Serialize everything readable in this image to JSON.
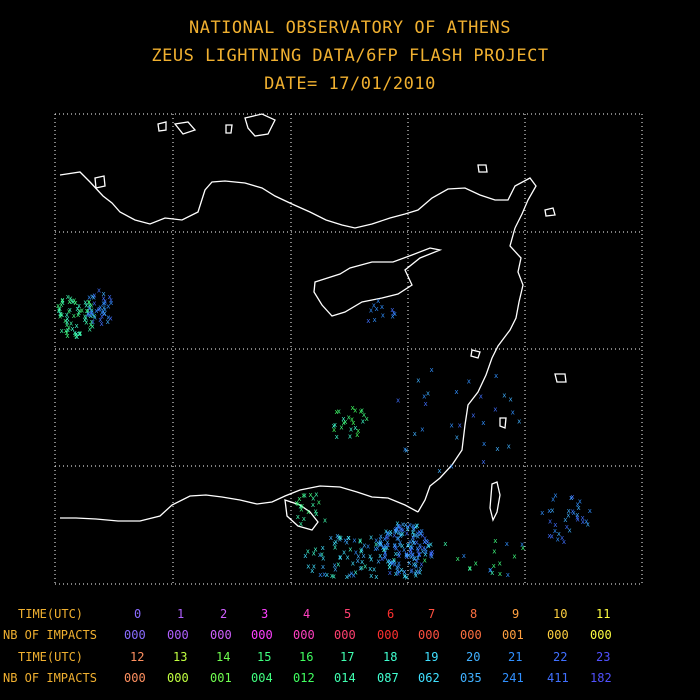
{
  "header": {
    "line1": "NATIONAL OBSERVATORY OF ATHENS",
    "line2": "ZEUS LIGHTNING DATA/6FP FLASH PROJECT",
    "line3": "DATE= 17/01/2010"
  },
  "legend": {
    "time_label": "TIME(UTC)",
    "impacts_label": "NB OF IMPACTS",
    "row1": {
      "hours": [
        "0",
        "1",
        "2",
        "3",
        "4",
        "5",
        "6",
        "7",
        "8",
        "9",
        "10",
        "11"
      ],
      "counts": [
        "000",
        "000",
        "000",
        "000",
        "000",
        "000",
        "000",
        "000",
        "000",
        "001",
        "000",
        "000"
      ]
    },
    "row2": {
      "hours": [
        "12",
        "13",
        "14",
        "15",
        "16",
        "17",
        "18",
        "19",
        "20",
        "21",
        "22",
        "23"
      ],
      "counts": [
        "000",
        "000",
        "001",
        "004",
        "012",
        "014",
        "087",
        "062",
        "035",
        "241",
        "411",
        "182"
      ]
    },
    "hour_colors": [
      "#8a6cff",
      "#b060ff",
      "#d060ff",
      "#ff40ff",
      "#ff40c0",
      "#ff4070",
      "#ff3030",
      "#ff5040",
      "#ff7040",
      "#ffa040",
      "#ffd040",
      "#ffff40",
      "#ff9060",
      "#c0ff40",
      "#70ff50",
      "#40ff80",
      "#40ff60",
      "#40ffb0",
      "#40ffd0",
      "#40e0ff",
      "#40b0ff",
      "#3090ff",
      "#4070ff",
      "#5050ff"
    ]
  },
  "map": {
    "grid": "dotted",
    "symbol": "x",
    "coastline_color": "#ffffff",
    "grid_color": "#ffffff"
  }
}
